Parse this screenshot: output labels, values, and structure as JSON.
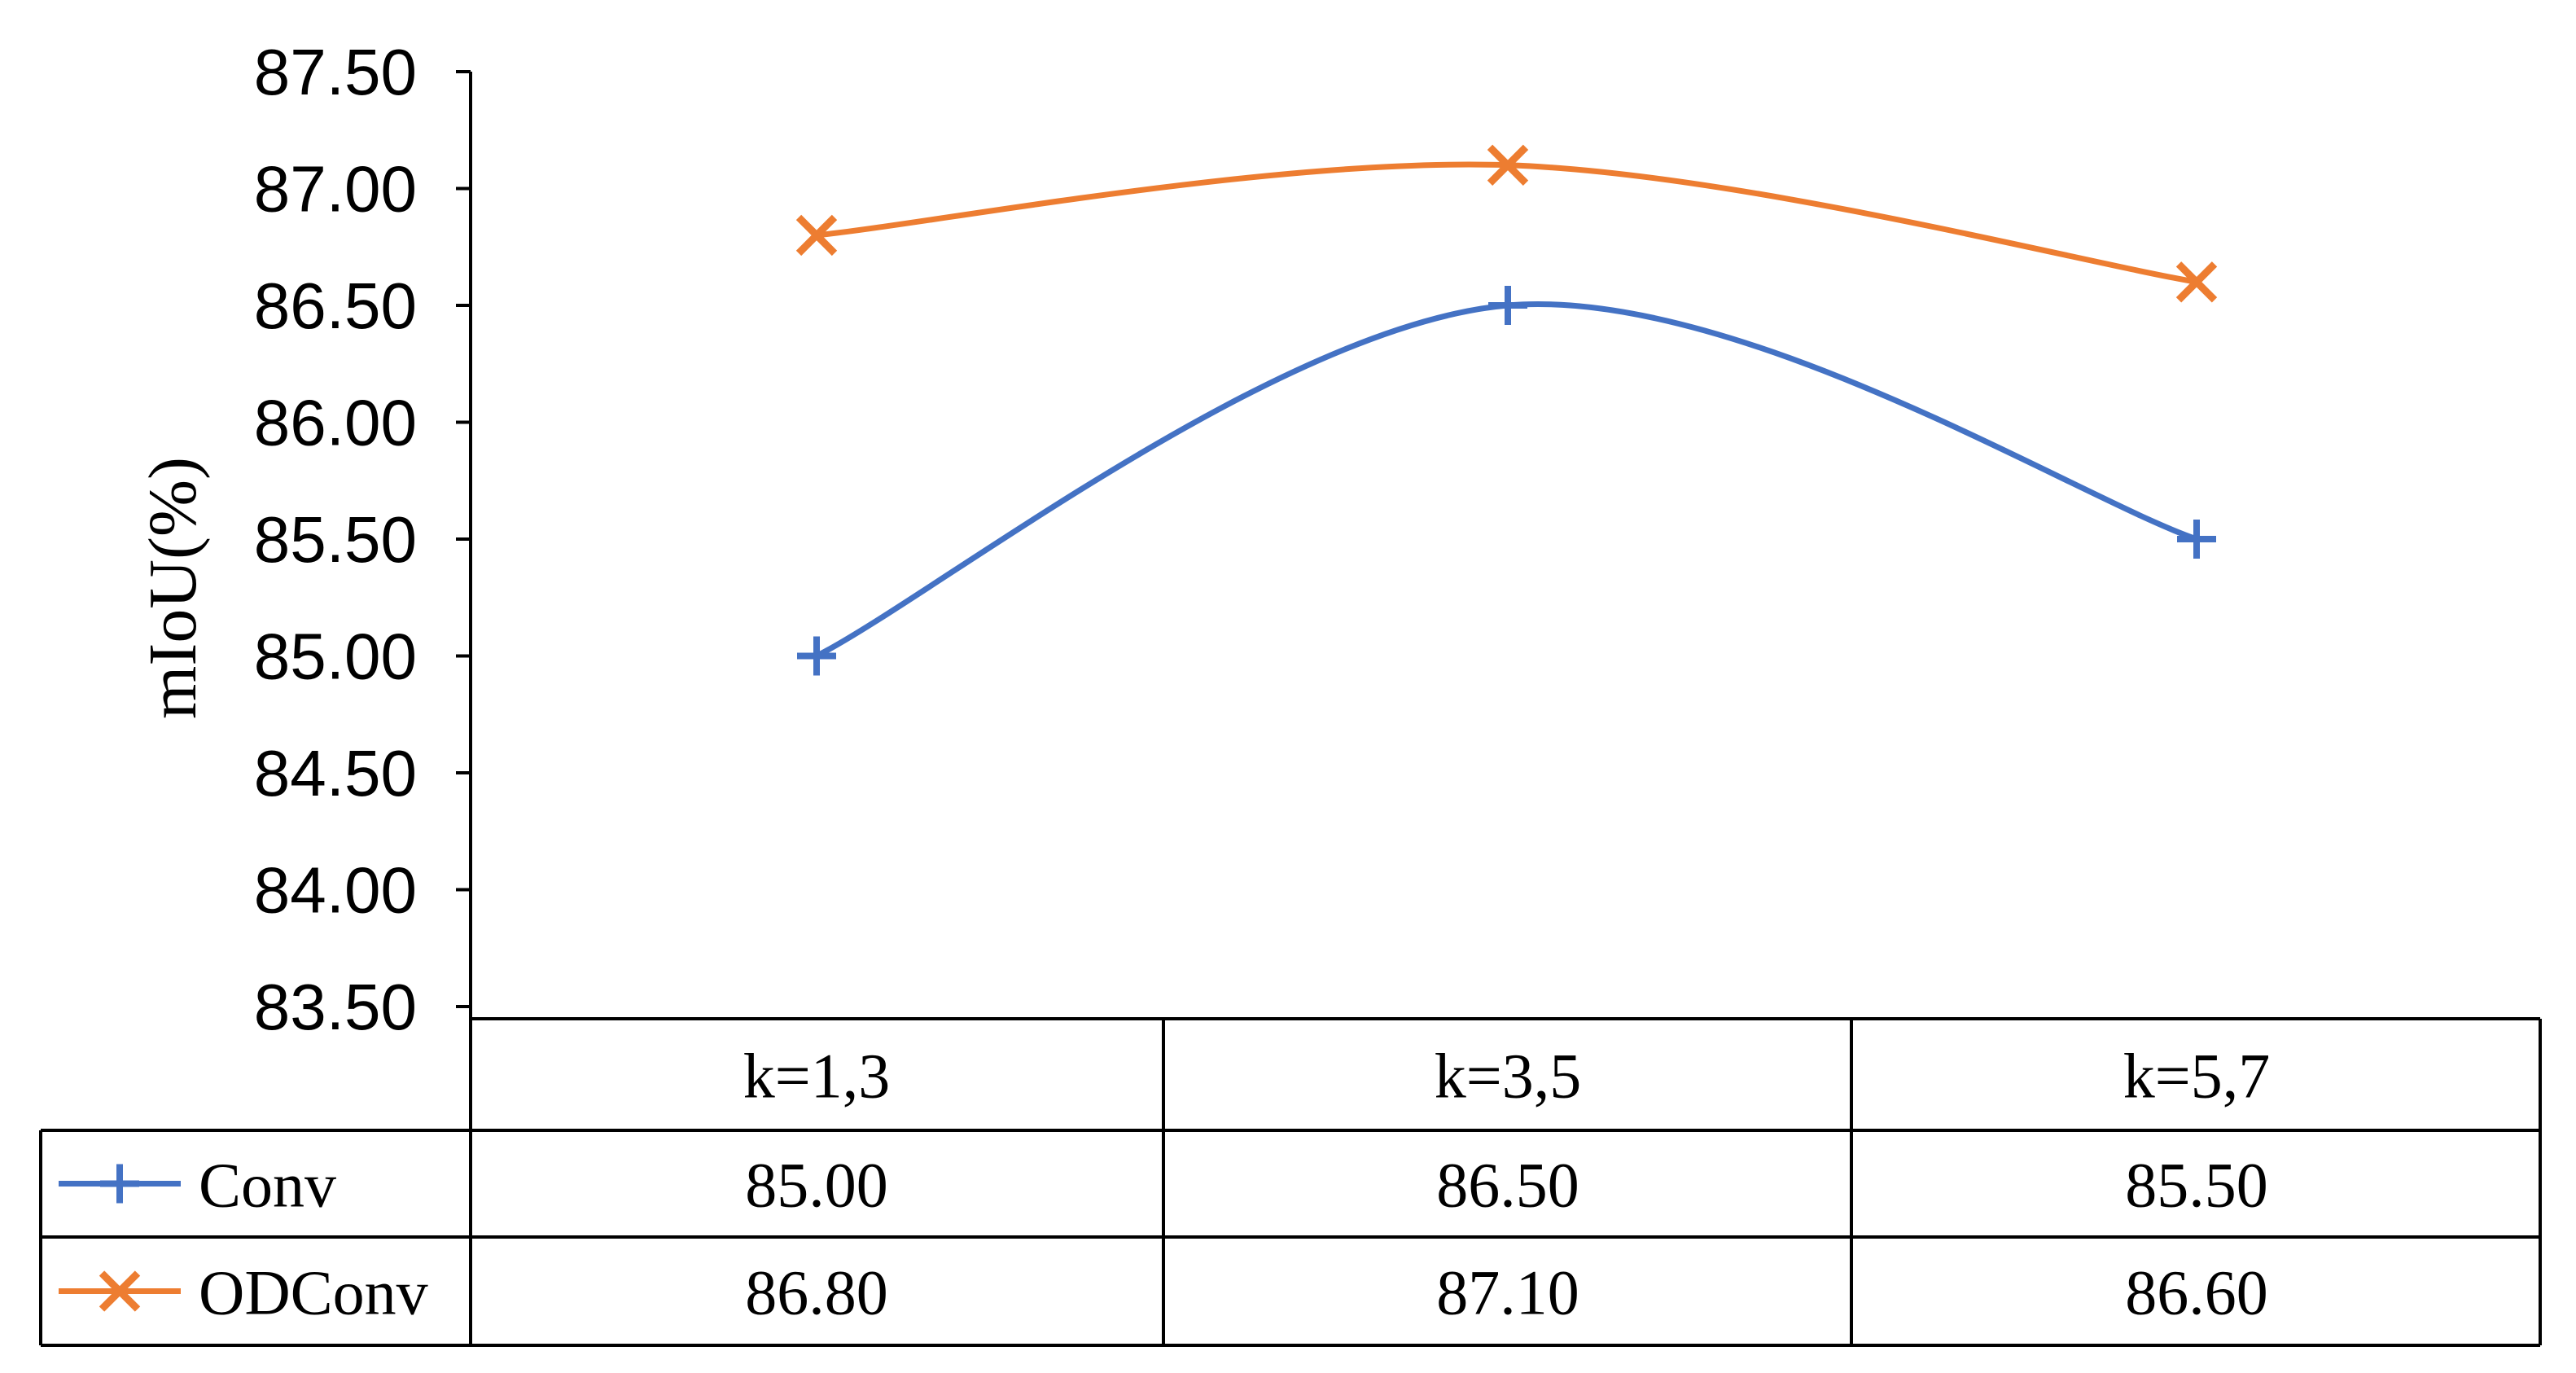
{
  "chart_data": {
    "type": "line",
    "title": "",
    "xlabel": "",
    "ylabel": "mIoU(%)",
    "ylim": [
      83.5,
      87.5
    ],
    "yticks": [
      "87.50",
      "87.00",
      "86.50",
      "86.00",
      "85.50",
      "85.00",
      "84.50",
      "84.00",
      "83.50"
    ],
    "categories": [
      "k=1,3",
      "k=3,5",
      "k=5,7"
    ],
    "grid": false,
    "legend": "data-table",
    "series": [
      {
        "name": "Conv",
        "values": [
          85.0,
          86.5,
          85.5
        ],
        "labels": [
          "85.00",
          "86.50",
          "85.50"
        ],
        "color": "#4472C4",
        "marker": "plus"
      },
      {
        "name": "ODConv",
        "values": [
          86.8,
          87.1,
          86.6
        ],
        "labels": [
          "86.80",
          "87.10",
          "86.60"
        ],
        "color": "#ED7D31",
        "marker": "x"
      }
    ]
  }
}
